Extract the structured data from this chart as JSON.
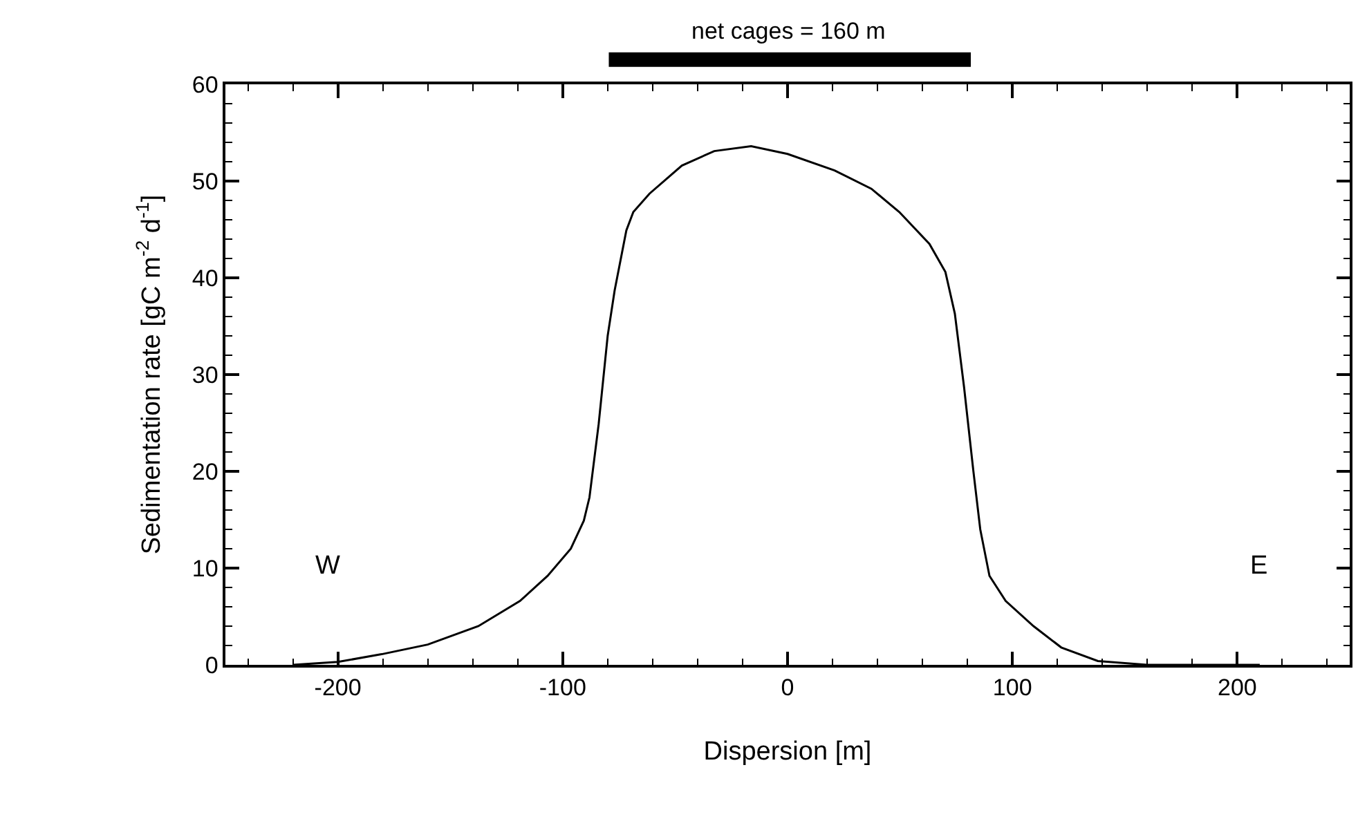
{
  "chart_data": {
    "type": "line",
    "xlabel": "Dispersion [m]",
    "ylabel": "Sedimentation rate [gC m$^{-2}$ d$^{-1}$]",
    "series": [
      {
        "color": "#000000",
        "x": [
          -220,
          -200,
          -180.5,
          -160,
          -137.5,
          -119,
          -106.7,
          -96.4,
          -90.6,
          -88.1,
          -84,
          -80,
          -76.9,
          -71.7,
          -68.6,
          -61.4,
          -47,
          -32.6,
          -16.2,
          0,
          20.9,
          37.3,
          49.7,
          63.1,
          70.2,
          74.4,
          78.5,
          82.6,
          85.7,
          89.8,
          97,
          109.4,
          121.7,
          138,
          160,
          210
        ],
        "values": [
          0,
          0.3,
          1.1,
          2.1,
          4.0,
          6.6,
          9.2,
          12.0,
          14.9,
          17.3,
          24.9,
          34,
          38.7,
          44.9,
          46.8,
          48.7,
          51.6,
          53.1,
          53.6,
          52.8,
          51.1,
          49.2,
          46.8,
          43.5,
          40.6,
          36.3,
          28.7,
          20.1,
          14.0,
          9.2,
          6.6,
          4.0,
          1.8,
          0.4,
          0,
          0
        ]
      }
    ],
    "xlim": [
      -250,
      250
    ],
    "xticks": [
      -200,
      -100,
      0,
      100,
      200,
      {
        "value": -240,
        "label": null
      },
      {
        "value": -220,
        "label": null
      },
      {
        "value": -180,
        "label": null
      },
      {
        "value": -160,
        "label": null
      },
      {
        "value": -140,
        "label": null
      },
      {
        "value": -120,
        "label": null
      },
      {
        "value": -80,
        "label": null
      },
      {
        "value": -60,
        "label": null
      },
      {
        "value": -40,
        "label": null
      },
      {
        "value": -20,
        "label": null
      },
      {
        "value": 20,
        "label": null
      },
      {
        "value": 40,
        "label": null
      },
      {
        "value": 60,
        "label": null
      },
      {
        "value": 80,
        "label": null
      },
      {
        "value": 120,
        "label": null
      },
      {
        "value": 140,
        "label": null
      },
      {
        "value": 160,
        "label": null
      },
      {
        "value": 180,
        "label": null
      },
      {
        "value": 220,
        "label": null
      },
      {
        "value": 240,
        "label": null
      }
    ],
    "ylim": [
      0,
      60
    ],
    "yticks": [
      0,
      10,
      20,
      30,
      40,
      50,
      60,
      {
        "value": 2,
        "label": null
      },
      {
        "value": 4,
        "label": null
      },
      {
        "value": 6,
        "label": null
      },
      {
        "value": 8,
        "label": null
      },
      {
        "value": 12,
        "label": null
      },
      {
        "value": 14,
        "label": null
      },
      {
        "value": 16,
        "label": null
      },
      {
        "value": 18,
        "label": null
      },
      {
        "value": 22,
        "label": null
      },
      {
        "value": 24,
        "label": null
      },
      {
        "value": 26,
        "label": null
      },
      {
        "value": 28,
        "label": null
      },
      {
        "value": 32,
        "label": null
      },
      {
        "value": 34,
        "label": null
      },
      {
        "value": 36,
        "label": null
      },
      {
        "value": 38,
        "label": null
      },
      {
        "value": 42,
        "label": null
      },
      {
        "value": 44,
        "label": null
      },
      {
        "value": 46,
        "label": null
      },
      {
        "value": 48,
        "label": null
      },
      {
        "value": 52,
        "label": null
      },
      {
        "value": 54,
        "label": null
      },
      {
        "value": 56,
        "label": null
      },
      {
        "value": 58,
        "label": null
      }
    ],
    "annotations": [
      "net cages = 160 m",
      "W",
      "E"
    ],
    "marker": "none",
    "line_style": "solid"
  }
}
